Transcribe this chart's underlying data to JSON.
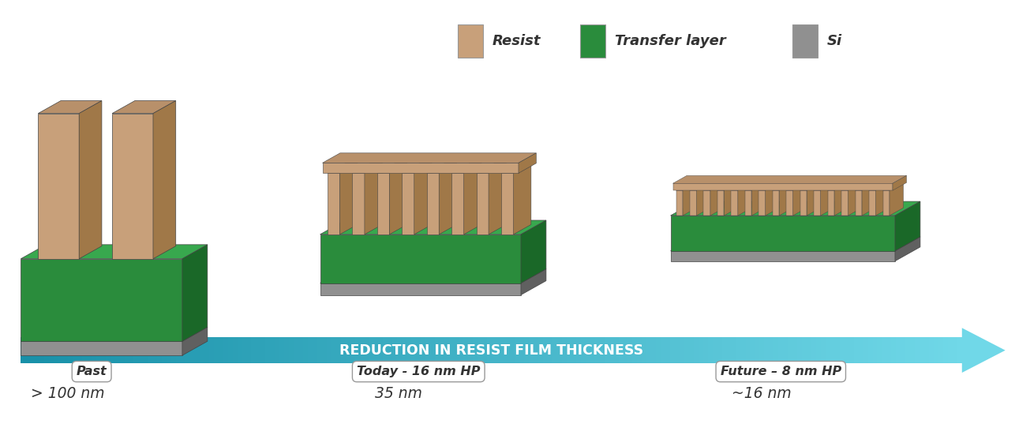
{
  "bg_color": "#ffffff",
  "resist_color": "#c8a07a",
  "resist_dark": "#a07848",
  "resist_top": "#b8906a",
  "green_color": "#2a8c3c",
  "green_dark": "#1a6828",
  "green_top": "#38a84e",
  "gray_color": "#909090",
  "gray_dark": "#606060",
  "gray_top": "#b8b8b8",
  "arrow_color_light": "#40c8d8",
  "arrow_color_dark": "#1890a8",
  "arrow_text": "REDUCTION IN RESIST FILM THICKNESS",
  "label_past": "Past",
  "label_today": "Today - 16 nm HP",
  "label_future": "Future – 8 nm HP",
  "val_past": "> 100 nm",
  "val_today": "35 nm",
  "val_future": "~16 nm",
  "legend_resist": "Resist",
  "legend_transfer": "Transfer layer",
  "legend_si": "Si",
  "figsize": [
    13.05,
    5.56
  ],
  "dpi": 100
}
